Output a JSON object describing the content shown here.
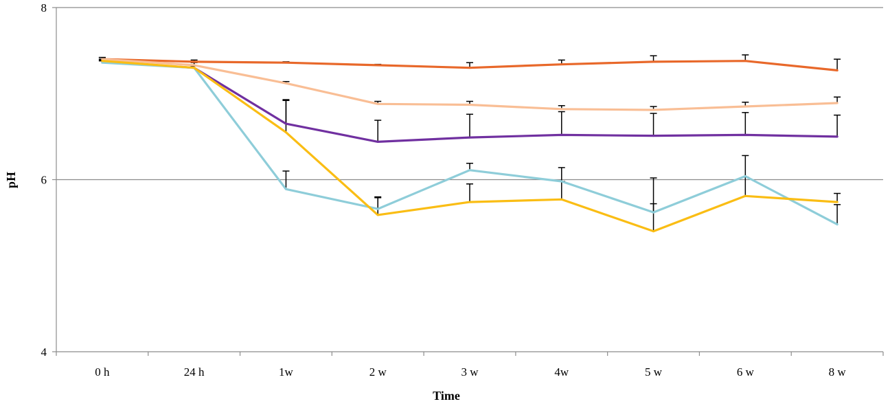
{
  "chart_data": {
    "type": "line",
    "title": "",
    "xlabel": "Time",
    "ylabel": "pH",
    "ylim": [
      4,
      8
    ],
    "yticks": [
      4,
      6,
      8
    ],
    "grid": true,
    "legend": "none",
    "categories": [
      "0 h",
      "24 h",
      "1w",
      "2 w",
      "3 w",
      "4w",
      "5 w",
      "6 w",
      "8 w"
    ],
    "series": [
      {
        "name": "series-red-orange",
        "color": "#E8682A",
        "values": [
          7.4,
          7.37,
          7.36,
          7.33,
          7.3,
          7.34,
          7.37,
          7.38,
          7.27
        ],
        "errors": [
          0.02,
          0.02,
          0.01,
          0.01,
          0.06,
          0.05,
          0.07,
          0.07,
          0.13
        ]
      },
      {
        "name": "series-peach",
        "color": "#F9BE95",
        "values": [
          7.4,
          7.33,
          7.12,
          6.88,
          6.87,
          6.82,
          6.81,
          6.85,
          6.89
        ],
        "errors": [
          0.02,
          0.03,
          0.02,
          0.03,
          0.04,
          0.04,
          0.04,
          0.05,
          0.07
        ]
      },
      {
        "name": "series-purple",
        "color": "#7030A0",
        "values": [
          7.37,
          7.3,
          6.65,
          6.44,
          6.49,
          6.52,
          6.51,
          6.52,
          6.5
        ],
        "errors": [
          0.02,
          0.02,
          0.27,
          0.25,
          0.27,
          0.27,
          0.26,
          0.26,
          0.25
        ]
      },
      {
        "name": "series-light-blue",
        "color": "#8ECDD9",
        "values": [
          7.36,
          7.3,
          5.89,
          5.66,
          6.11,
          5.98,
          5.62,
          6.04,
          5.48
        ],
        "errors": [
          0.02,
          0.02,
          0.21,
          0.13,
          0.08,
          0.16,
          0.4,
          0.24,
          0.23
        ]
      },
      {
        "name": "series-yellow",
        "color": "#FABD14",
        "values": [
          7.38,
          7.3,
          6.55,
          5.59,
          5.74,
          5.77,
          5.4,
          5.81,
          5.74
        ],
        "errors": [
          0.02,
          0.02,
          0.38,
          0.21,
          0.21,
          0.21,
          0.32,
          0.22,
          0.1
        ]
      }
    ]
  }
}
